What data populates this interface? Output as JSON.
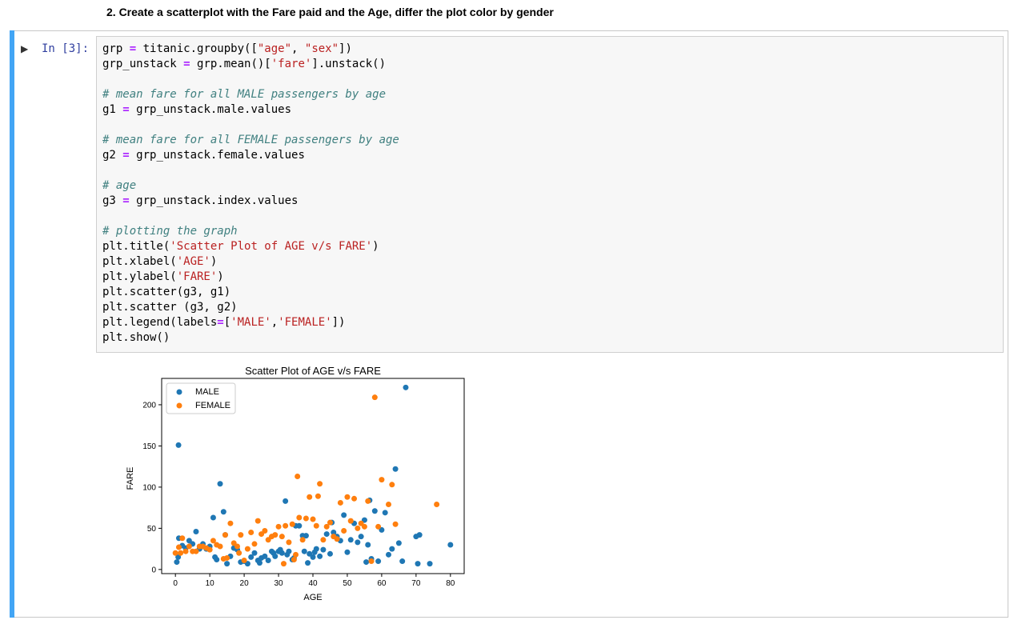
{
  "heading": "2. Create a scatterplot with the Fare paid and the Age, differ the plot color by gender",
  "cell": {
    "prompt": "In [3]:",
    "run_icon": "run-cell-icon",
    "lines": [
      {
        "segs": [
          {
            "t": "grp "
          },
          {
            "t": "=",
            "c": "op"
          },
          {
            "t": " titanic.groupby(["
          },
          {
            "t": "\"age\"",
            "c": "st"
          },
          {
            "t": ", "
          },
          {
            "t": "\"sex\"",
            "c": "st"
          },
          {
            "t": "])"
          }
        ]
      },
      {
        "segs": [
          {
            "t": "grp_unstack "
          },
          {
            "t": "=",
            "c": "op"
          },
          {
            "t": " grp.mean()["
          },
          {
            "t": "'fare'",
            "c": "st"
          },
          {
            "t": "].unstack()"
          }
        ]
      },
      {
        "segs": []
      },
      {
        "segs": [
          {
            "t": "# mean fare for all MALE passengers by age",
            "c": "cm"
          }
        ]
      },
      {
        "segs": [
          {
            "t": "g1 "
          },
          {
            "t": "=",
            "c": "op"
          },
          {
            "t": " grp_unstack.male.values"
          }
        ]
      },
      {
        "segs": []
      },
      {
        "segs": [
          {
            "t": "# mean fare for all FEMALE passengers by age",
            "c": "cm"
          }
        ]
      },
      {
        "segs": [
          {
            "t": "g2 "
          },
          {
            "t": "=",
            "c": "op"
          },
          {
            "t": " grp_unstack.female.values"
          }
        ]
      },
      {
        "segs": []
      },
      {
        "segs": [
          {
            "t": "# age",
            "c": "cm"
          }
        ]
      },
      {
        "segs": [
          {
            "t": "g3 "
          },
          {
            "t": "=",
            "c": "op"
          },
          {
            "t": " grp_unstack.index.values"
          }
        ]
      },
      {
        "segs": []
      },
      {
        "segs": [
          {
            "t": "# plotting the graph",
            "c": "cm"
          }
        ]
      },
      {
        "segs": [
          {
            "t": "plt.title("
          },
          {
            "t": "'Scatter Plot of AGE v/s FARE'",
            "c": "st"
          },
          {
            "t": ")"
          }
        ]
      },
      {
        "segs": [
          {
            "t": "plt.xlabel("
          },
          {
            "t": "'AGE'",
            "c": "st"
          },
          {
            "t": ")"
          }
        ]
      },
      {
        "segs": [
          {
            "t": "plt.ylabel("
          },
          {
            "t": "'FARE'",
            "c": "st"
          },
          {
            "t": ")"
          }
        ]
      },
      {
        "segs": [
          {
            "t": "plt.scatter(g3, g1)"
          }
        ]
      },
      {
        "segs": [
          {
            "t": "plt.scatter (g3, g2)"
          }
        ]
      },
      {
        "segs": [
          {
            "t": "plt.legend(labels"
          },
          {
            "t": "=",
            "c": "op"
          },
          {
            "t": "["
          },
          {
            "t": "'MALE'",
            "c": "st"
          },
          {
            "t": ","
          },
          {
            "t": "'FEMALE'",
            "c": "st"
          },
          {
            "t": "])"
          }
        ]
      },
      {
        "segs": [
          {
            "t": "plt.show()"
          }
        ]
      }
    ]
  },
  "colors": {
    "cell_bar": "#42a5f5",
    "male": "#1f77b4",
    "female": "#ff7f0e"
  },
  "chart_data": {
    "type": "scatter",
    "title": "Scatter Plot of AGE v/s FARE",
    "xlabel": "AGE",
    "ylabel": "FARE",
    "xlim": [
      -4,
      84
    ],
    "ylim": [
      -5,
      232
    ],
    "xticks": [
      0,
      10,
      20,
      30,
      40,
      50,
      60,
      70,
      80
    ],
    "yticks": [
      0,
      50,
      100,
      150,
      200
    ],
    "legend_position": "top-left",
    "series": [
      {
        "name": "MALE",
        "color": "#1f77b4",
        "points": [
          [
            0.4,
            9
          ],
          [
            0.8,
            15
          ],
          [
            0.9,
            151
          ],
          [
            1,
            38
          ],
          [
            2,
            29
          ],
          [
            3,
            26
          ],
          [
            4,
            35
          ],
          [
            5,
            31
          ],
          [
            6,
            46
          ],
          [
            7,
            25
          ],
          [
            8,
            31
          ],
          [
            9,
            25
          ],
          [
            10,
            28
          ],
          [
            11,
            63
          ],
          [
            11.5,
            15
          ],
          [
            12,
            12
          ],
          [
            13,
            104
          ],
          [
            14,
            70
          ],
          [
            14.5,
            42
          ],
          [
            15,
            7
          ],
          [
            16,
            16
          ],
          [
            17,
            26
          ],
          [
            18,
            24
          ],
          [
            19,
            9
          ],
          [
            20,
            10
          ],
          [
            21,
            7
          ],
          [
            22,
            15
          ],
          [
            23,
            20
          ],
          [
            24,
            11
          ],
          [
            24.5,
            8
          ],
          [
            25,
            14
          ],
          [
            26,
            16
          ],
          [
            27,
            11
          ],
          [
            28,
            22
          ],
          [
            28.5,
            20
          ],
          [
            29,
            16
          ],
          [
            30,
            22
          ],
          [
            30.5,
            24
          ],
          [
            31,
            20
          ],
          [
            32,
            83
          ],
          [
            32.5,
            18
          ],
          [
            33,
            22
          ],
          [
            34,
            12
          ],
          [
            34.5,
            14
          ],
          [
            35,
            53
          ],
          [
            36,
            53
          ],
          [
            37,
            41
          ],
          [
            37.5,
            22
          ],
          [
            38,
            41
          ],
          [
            38.5,
            8
          ],
          [
            39,
            19
          ],
          [
            40,
            15
          ],
          [
            40.5,
            21
          ],
          [
            41,
            25
          ],
          [
            42,
            16
          ],
          [
            43,
            24
          ],
          [
            44,
            43
          ],
          [
            45,
            19
          ],
          [
            45.5,
            57
          ],
          [
            46,
            45
          ],
          [
            47,
            40
          ],
          [
            48,
            35
          ],
          [
            49,
            66
          ],
          [
            50,
            21
          ],
          [
            51,
            36
          ],
          [
            52,
            56
          ],
          [
            53,
            33
          ],
          [
            54,
            40
          ],
          [
            55,
            60
          ],
          [
            55.5,
            9
          ],
          [
            56,
            30
          ],
          [
            56.5,
            84
          ],
          [
            57,
            13
          ],
          [
            58,
            71
          ],
          [
            59,
            10
          ],
          [
            60,
            48
          ],
          [
            61,
            69
          ],
          [
            62,
            18
          ],
          [
            63,
            25
          ],
          [
            64,
            122
          ],
          [
            65,
            32
          ],
          [
            66,
            10
          ],
          [
            67,
            221
          ],
          [
            70,
            40
          ],
          [
            70.5,
            7
          ],
          [
            71,
            42
          ],
          [
            74,
            7
          ],
          [
            80,
            30
          ]
        ]
      },
      {
        "name": "FEMALE",
        "color": "#ff7f0e",
        "points": [
          [
            0,
            20
          ],
          [
            1,
            27
          ],
          [
            1.5,
            20
          ],
          [
            2,
            38
          ],
          [
            3,
            22
          ],
          [
            4,
            28
          ],
          [
            5,
            22
          ],
          [
            6,
            22
          ],
          [
            7,
            28
          ],
          [
            8,
            28
          ],
          [
            9,
            26
          ],
          [
            10,
            24
          ],
          [
            11,
            35
          ],
          [
            12,
            30
          ],
          [
            13,
            28
          ],
          [
            14,
            13
          ],
          [
            14.5,
            42
          ],
          [
            15,
            14
          ],
          [
            16,
            56
          ],
          [
            17,
            32
          ],
          [
            18,
            28
          ],
          [
            18.5,
            20
          ],
          [
            19,
            42
          ],
          [
            20,
            11
          ],
          [
            21,
            25
          ],
          [
            22,
            45
          ],
          [
            23,
            31
          ],
          [
            24,
            59
          ],
          [
            25,
            43
          ],
          [
            26,
            47
          ],
          [
            27,
            36
          ],
          [
            28,
            40
          ],
          [
            29,
            42
          ],
          [
            30,
            52
          ],
          [
            31,
            40
          ],
          [
            31.5,
            7
          ],
          [
            32,
            53
          ],
          [
            33,
            33
          ],
          [
            34,
            55
          ],
          [
            34.5,
            12
          ],
          [
            35,
            18
          ],
          [
            35.5,
            113
          ],
          [
            36,
            63
          ],
          [
            37,
            36
          ],
          [
            38,
            62
          ],
          [
            39,
            88
          ],
          [
            40,
            61
          ],
          [
            41,
            53
          ],
          [
            41.5,
            89
          ],
          [
            42,
            104
          ],
          [
            43,
            36
          ],
          [
            44,
            52
          ],
          [
            45,
            57
          ],
          [
            46,
            40
          ],
          [
            47,
            37
          ],
          [
            48,
            81
          ],
          [
            49,
            47
          ],
          [
            50,
            88
          ],
          [
            51,
            59
          ],
          [
            52,
            86
          ],
          [
            53,
            50
          ],
          [
            54,
            56
          ],
          [
            55,
            52
          ],
          [
            56,
            83
          ],
          [
            57,
            10
          ],
          [
            58,
            209
          ],
          [
            59,
            52
          ],
          [
            60,
            109
          ],
          [
            62,
            79
          ],
          [
            63,
            103
          ],
          [
            64,
            55
          ],
          [
            76,
            79
          ]
        ]
      }
    ]
  }
}
